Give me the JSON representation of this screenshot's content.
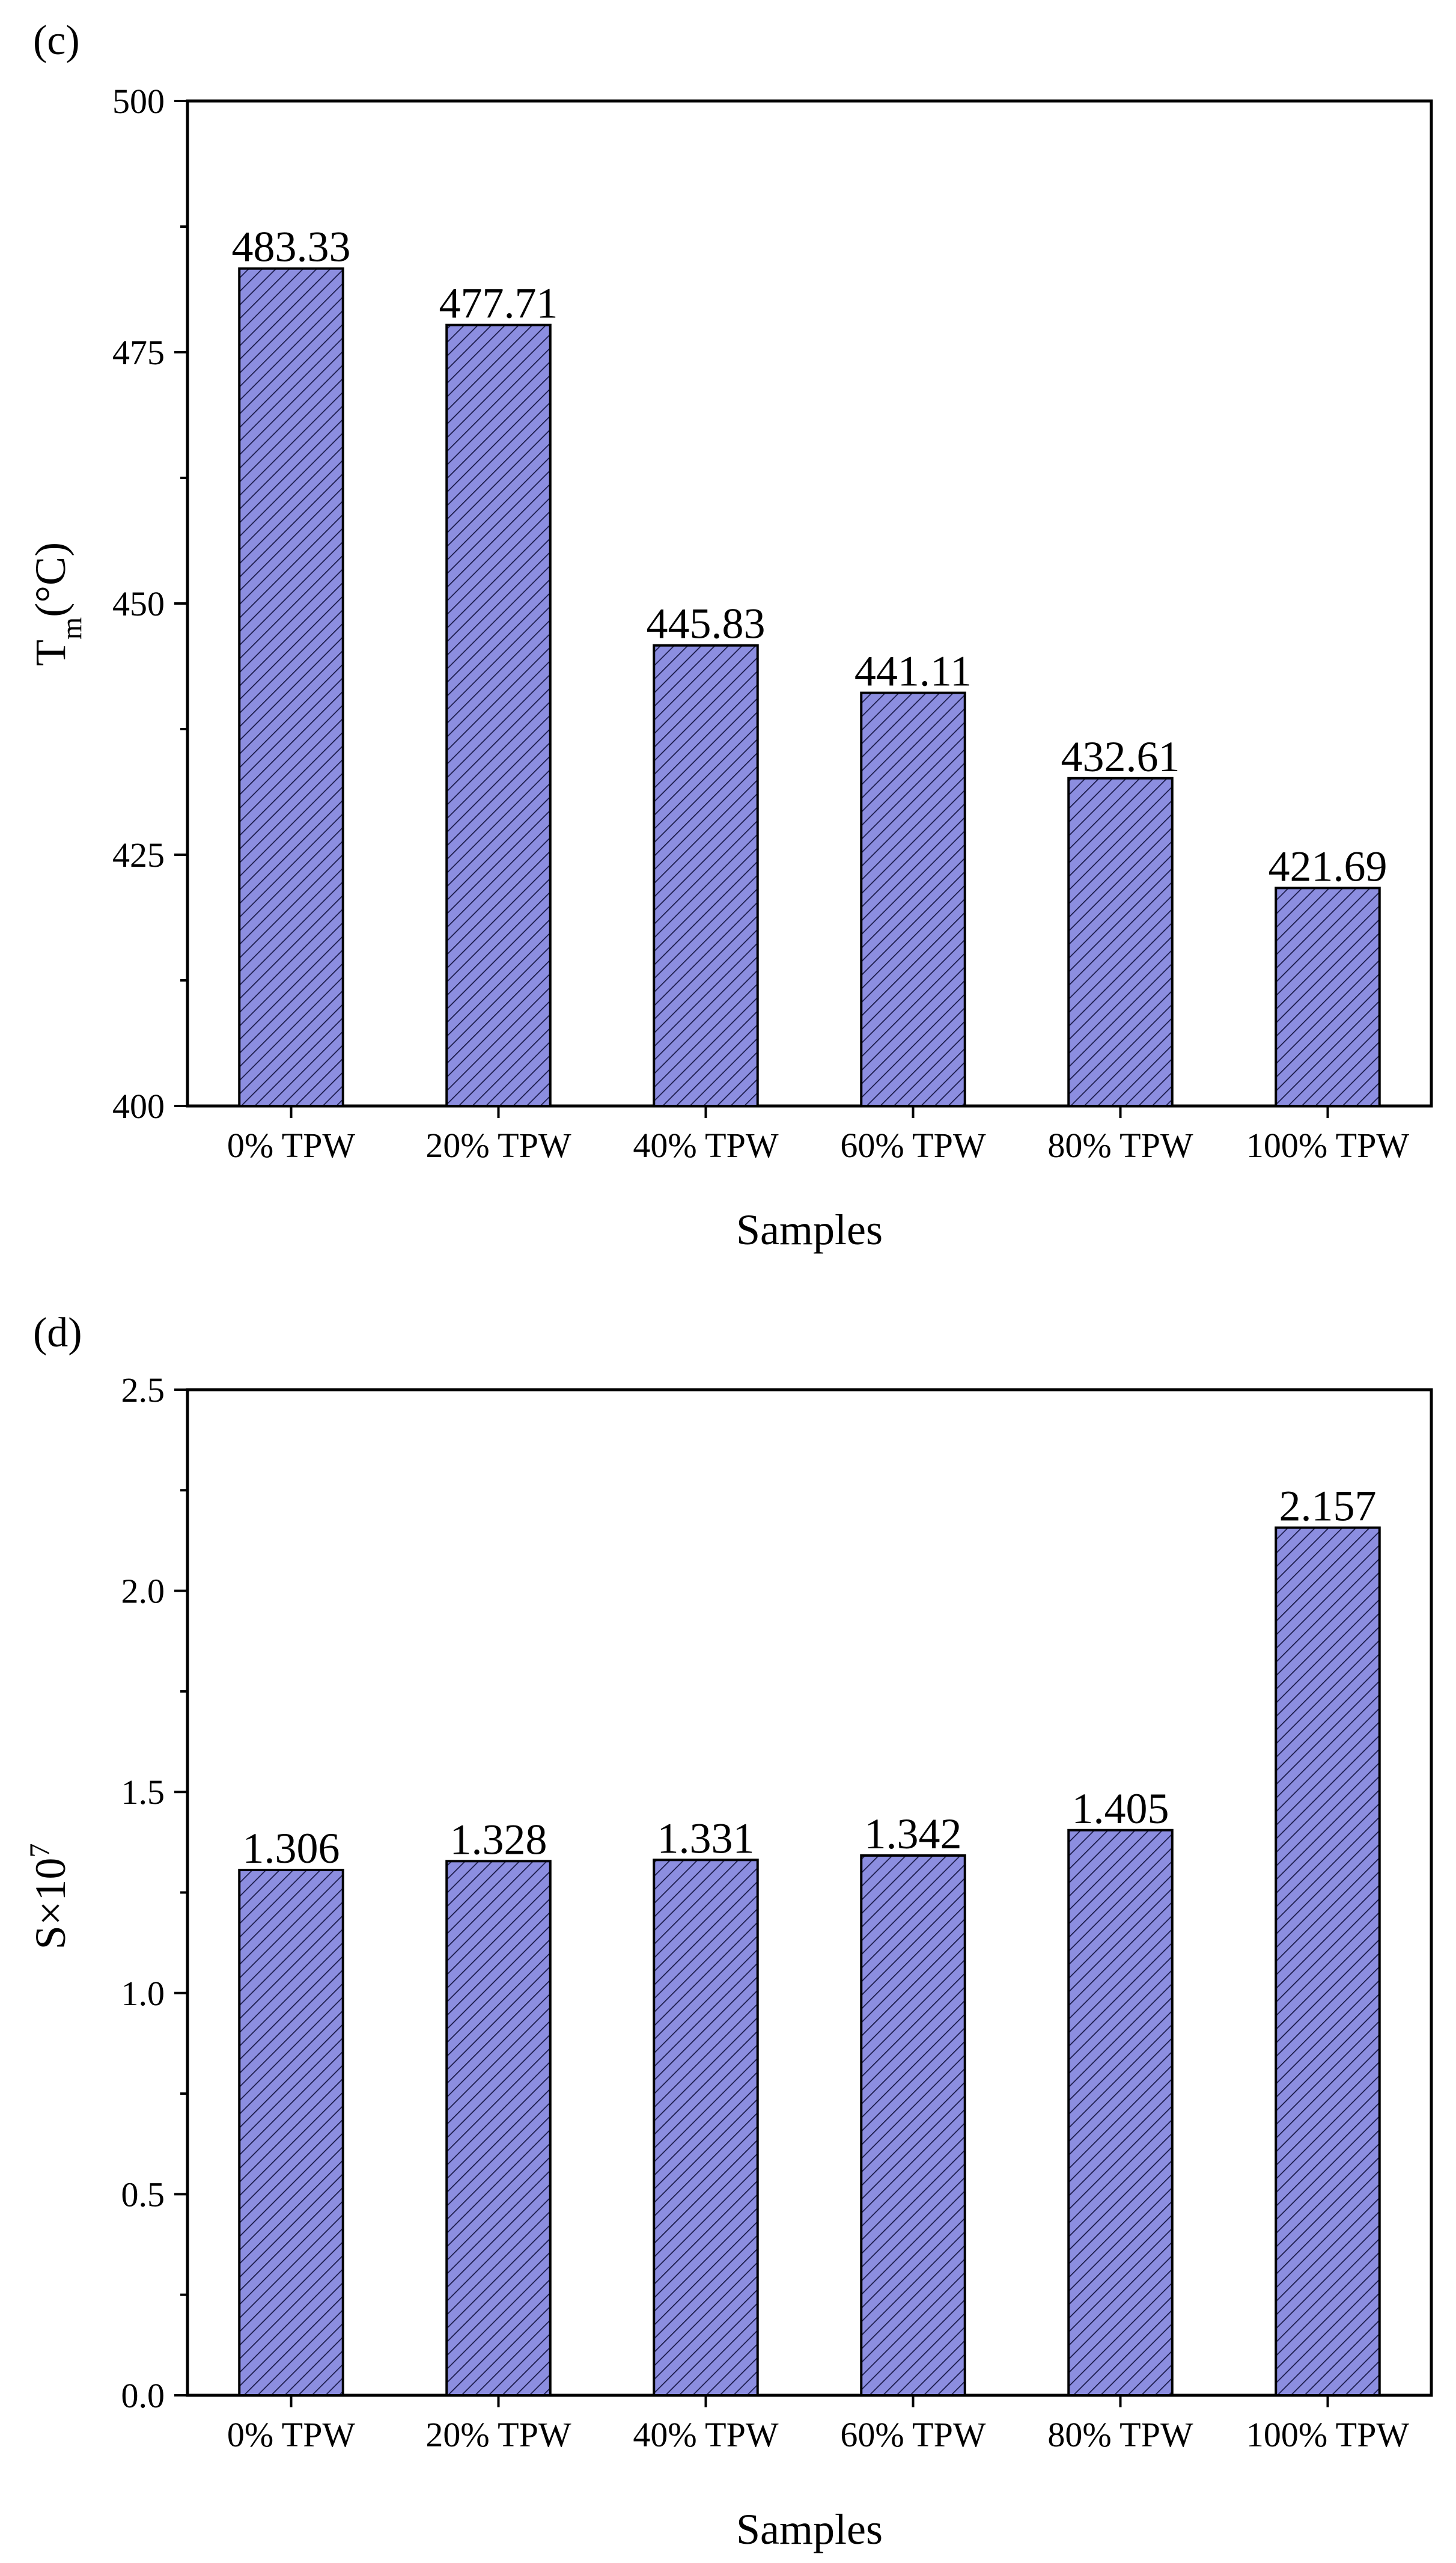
{
  "colors": {
    "bar_fill": "#8c8ee0",
    "hatch": "#1a1a4a",
    "axis": "#000000"
  },
  "panels": [
    {
      "panel_label": "(c)",
      "ylabel_main": "T",
      "ylabel_sub": "m",
      "ylabel_tail": "(°C)",
      "xlabel": "Samples",
      "ytick_labels": [
        "400",
        "425",
        "450",
        "475",
        "500"
      ],
      "value_labels": [
        "483.33",
        "477.71",
        "445.83",
        "441.11",
        "432.61",
        "421.69"
      ]
    },
    {
      "panel_label": "(d)",
      "ylabel_main": "S×10",
      "ylabel_sup": "7",
      "xlabel": "Samples",
      "ytick_labels": [
        "0.0",
        "0.5",
        "1.0",
        "1.5",
        "2.0",
        "2.5"
      ],
      "value_labels": [
        "1.306",
        "1.328",
        "1.331",
        "1.342",
        "1.405",
        "2.157"
      ]
    }
  ],
  "chart_data": [
    {
      "type": "bar",
      "title": "(c)",
      "categories": [
        "0% TPW",
        "20% TPW",
        "40% TPW",
        "60% TPW",
        "80% TPW",
        "100% TPW"
      ],
      "values": [
        483.33,
        477.71,
        445.83,
        441.11,
        432.61,
        421.69
      ],
      "xlabel": "Samples",
      "ylabel": "Tm(°C)",
      "ylim": [
        400,
        500
      ],
      "yticks": [
        400,
        425,
        450,
        475,
        500
      ],
      "grid": false,
      "bar_style": "hatched"
    },
    {
      "type": "bar",
      "title": "(d)",
      "categories": [
        "0% TPW",
        "20% TPW",
        "40% TPW",
        "60% TPW",
        "80% TPW",
        "100% TPW"
      ],
      "values": [
        1.306,
        1.328,
        1.331,
        1.342,
        1.405,
        2.157
      ],
      "xlabel": "Samples",
      "ylabel": "S×10^7",
      "ylim": [
        0,
        2.5
      ],
      "yticks": [
        0.0,
        0.5,
        1.0,
        1.5,
        2.0,
        2.5
      ],
      "grid": false,
      "bar_style": "hatched"
    }
  ]
}
